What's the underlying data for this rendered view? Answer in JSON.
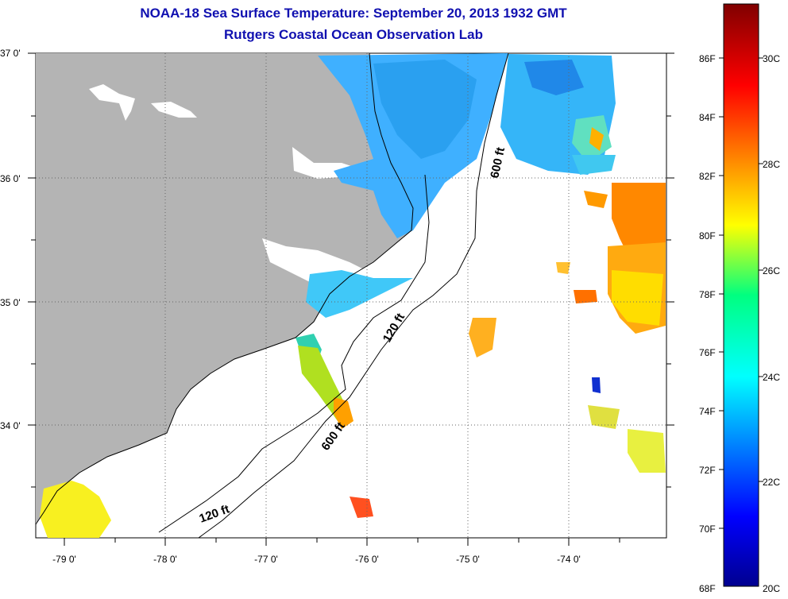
{
  "header": {
    "title": "NOAA-18 Sea Surface Temperature:  September 20, 2013 1932 GMT",
    "subtitle": "Rutgers Coastal Ocean Observation Lab"
  },
  "map": {
    "lon_range": [
      -79.3,
      -73.0
    ],
    "lat_range": [
      33.1,
      37.0
    ],
    "lon_labels": [
      "-79 0'",
      "-78 0'",
      "-77 0'",
      "-76 0'",
      "-75 0'",
      "-74 0'"
    ],
    "lat_labels": [
      "37 0'",
      "36 0'",
      "35 0'",
      "34 0'"
    ],
    "contours": [
      {
        "label": "600 ft",
        "id": "contour-600-north"
      },
      {
        "label": "120 ft",
        "id": "contour-120-mid"
      },
      {
        "label": "600 ft",
        "id": "contour-600-south"
      },
      {
        "label": "120 ft",
        "id": "contour-120-south"
      }
    ],
    "colors": {
      "land": "#b4b4b4",
      "ocean_nodata": "#ffffff"
    }
  },
  "colorbar": {
    "fahrenheit_labels": [
      "86F",
      "84F",
      "82F",
      "80F",
      "78F",
      "76F",
      "74F",
      "72F",
      "70F",
      "68F"
    ],
    "celsius_labels": [
      "30C",
      "28C",
      "26C",
      "24C",
      "22C",
      "20C"
    ],
    "min_c": 20,
    "max_c": 31.2
  }
}
